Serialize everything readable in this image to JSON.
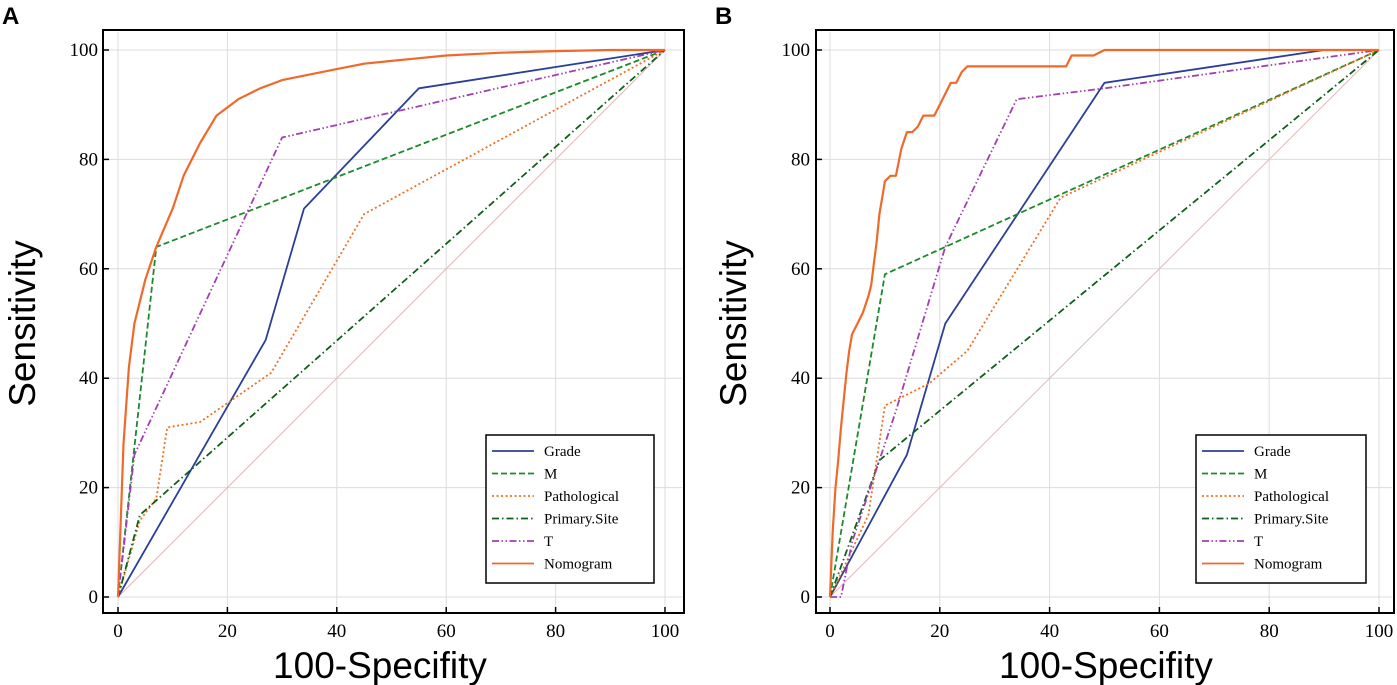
{
  "chart_data": [
    {
      "type": "line",
      "panel": "A",
      "xlabel": "100-Specifity",
      "ylabel": "Sensitivity",
      "xlim": [
        0,
        100
      ],
      "ylim": [
        0,
        100
      ],
      "xticks": [
        0,
        20,
        40,
        60,
        80,
        100
      ],
      "yticks": [
        0,
        20,
        40,
        60,
        80,
        100
      ],
      "grid": true,
      "legend_position": "bottom-right",
      "reference_line": {
        "name": "Reference",
        "color": "#e0b8b8",
        "x": [
          0,
          100
        ],
        "y": [
          0,
          100
        ]
      },
      "series": [
        {
          "name": "Grade",
          "color": "#2b3f98",
          "style": "solid",
          "x": [
            0,
            27,
            34,
            55,
            100
          ],
          "y": [
            0,
            47,
            71,
            93,
            100
          ]
        },
        {
          "name": "M",
          "color": "#1a8a2a",
          "style": "dashed",
          "x": [
            0,
            7,
            100
          ],
          "y": [
            0,
            64,
            100
          ]
        },
        {
          "name": "Pathological",
          "color": "#f07020",
          "style": "dotted",
          "x": [
            0,
            4,
            7,
            9,
            15,
            28,
            45,
            100
          ],
          "y": [
            0,
            14,
            18,
            31,
            32,
            41,
            70,
            100
          ]
        },
        {
          "name": "Primary.Site",
          "color": "#0f5f1a",
          "style": "dashdot",
          "x": [
            0,
            4,
            100
          ],
          "y": [
            0,
            15,
            100
          ]
        },
        {
          "name": "T",
          "color": "#a040b0",
          "style": "dashdotdot",
          "x": [
            0,
            3,
            30,
            100
          ],
          "y": [
            0,
            26,
            84,
            100
          ]
        },
        {
          "name": "Nomogram",
          "color": "#ef6a2a",
          "style": "solid",
          "x": [
            0,
            1,
            2,
            3,
            5,
            7,
            10,
            12,
            15,
            18,
            22,
            26,
            30,
            35,
            40,
            45,
            50,
            55,
            60,
            70,
            80,
            90,
            100
          ],
          "y": [
            0,
            28,
            42,
            50,
            58,
            64,
            71,
            77,
            83,
            88,
            91,
            93,
            94.5,
            95.5,
            96.5,
            97.5,
            98,
            98.5,
            99,
            99.5,
            99.8,
            100,
            100
          ]
        }
      ]
    },
    {
      "type": "line",
      "panel": "B",
      "xlabel": "100-Specifity",
      "ylabel": "Sensitivity",
      "xlim": [
        0,
        100
      ],
      "ylim": [
        0,
        100
      ],
      "xticks": [
        0,
        20,
        40,
        60,
        80,
        100
      ],
      "yticks": [
        0,
        20,
        40,
        60,
        80,
        100
      ],
      "grid": true,
      "legend_position": "bottom-right",
      "reference_line": {
        "name": "Reference",
        "color": "#e0b8b8",
        "x": [
          0,
          100
        ],
        "y": [
          0,
          100
        ]
      },
      "series": [
        {
          "name": "Grade",
          "color": "#2b3f98",
          "style": "solid",
          "x": [
            0,
            14,
            21,
            50,
            90,
            100
          ],
          "y": [
            0,
            26,
            50,
            94,
            100,
            100
          ]
        },
        {
          "name": "M",
          "color": "#1a8a2a",
          "style": "dashed",
          "x": [
            0,
            10,
            100
          ],
          "y": [
            0,
            59,
            100
          ]
        },
        {
          "name": "Pathological",
          "color": "#f07020",
          "style": "dotted",
          "x": [
            0,
            7,
            10,
            18,
            25,
            42,
            100
          ],
          "y": [
            0,
            15,
            35,
            39,
            45,
            73,
            100
          ]
        },
        {
          "name": "Primary.Site",
          "color": "#0f5f1a",
          "style": "dashdot",
          "x": [
            0,
            9,
            100
          ],
          "y": [
            0,
            25,
            100
          ]
        },
        {
          "name": "T",
          "color": "#a040b0",
          "style": "dashdotdot",
          "x": [
            0,
            2,
            4,
            12,
            21,
            34,
            50,
            100
          ],
          "y": [
            0,
            0,
            10,
            34,
            64,
            91,
            93,
            100
          ]
        },
        {
          "name": "Nomogram",
          "color": "#ef6a2a",
          "style": "solid",
          "x": [
            0,
            0.5,
            1,
            1.5,
            2,
            2.5,
            3,
            3.5,
            4,
            5,
            6,
            7,
            7.5,
            8,
            8.5,
            9,
            9.5,
            10,
            11,
            12,
            13,
            14,
            15,
            16,
            17,
            18,
            19,
            20,
            21,
            22,
            23,
            24,
            25,
            26,
            30,
            38,
            43,
            44,
            48,
            50,
            100
          ],
          "y": [
            0,
            12,
            20,
            25,
            31,
            36,
            41,
            45,
            48,
            50,
            52,
            55,
            57,
            61,
            65,
            70,
            73,
            76,
            77,
            77,
            82,
            85,
            85,
            86,
            88,
            88,
            88,
            90,
            92,
            94,
            94,
            96,
            97,
            97,
            97,
            97,
            97,
            99,
            99,
            100,
            100
          ]
        }
      ]
    }
  ]
}
